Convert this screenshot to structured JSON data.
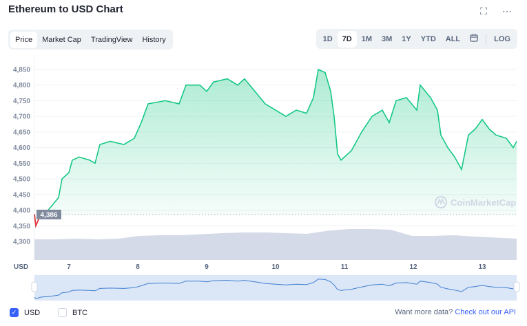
{
  "title": "Ethereum to USD Chart",
  "top_icons": [
    "fullscreen-icon",
    "more-icon"
  ],
  "tabs": [
    {
      "label": "Price",
      "active": true
    },
    {
      "label": "Market Cap"
    },
    {
      "label": "TradingView"
    },
    {
      "label": "History"
    }
  ],
  "ranges": [
    {
      "label": "1D"
    },
    {
      "label": "7D",
      "active": true
    },
    {
      "label": "1M"
    },
    {
      "label": "3M"
    },
    {
      "label": "1Y"
    },
    {
      "label": "YTD"
    },
    {
      "label": "ALL"
    }
  ],
  "calendar_icon": "calendar-icon",
  "log_label": "LOG",
  "watermark": "CoinMarketCap",
  "currency_label": "USD",
  "colors": {
    "up": "#16c784",
    "down": "#ea3943",
    "volume": "#cfd6e4",
    "navigator_line": "#3f7fd0",
    "link": "#3861fb"
  },
  "chart_data": {
    "type": "line",
    "ylim": [
      4250,
      4870
    ],
    "yticks": [
      "4,300",
      "4,350",
      "4,400",
      "4,450",
      "4,500",
      "4,550",
      "4,600",
      "4,650",
      "4,700",
      "4,750",
      "4,800",
      "4,850"
    ],
    "ytick_values": [
      4300,
      4350,
      4400,
      4450,
      4500,
      4550,
      4600,
      4650,
      4700,
      4750,
      4800,
      4850
    ],
    "xticks": [
      "7",
      "8",
      "9",
      "10",
      "11",
      "12",
      "13"
    ],
    "xtick_values": [
      7,
      8,
      9,
      10,
      11,
      12,
      13
    ],
    "xlim": [
      6.5,
      13.5
    ],
    "start_price_label": "4,386",
    "start_price": 4386,
    "x": [
      6.5,
      6.52,
      6.6,
      6.7,
      6.85,
      6.9,
      7.0,
      7.05,
      7.15,
      7.3,
      7.38,
      7.45,
      7.6,
      7.8,
      7.95,
      8.05,
      8.15,
      8.4,
      8.6,
      8.7,
      8.9,
      9.0,
      9.1,
      9.3,
      9.45,
      9.55,
      9.7,
      9.85,
      10.0,
      10.15,
      10.3,
      10.45,
      10.55,
      10.62,
      10.72,
      10.8,
      10.85,
      10.9,
      10.95,
      11.1,
      11.25,
      11.4,
      11.55,
      11.65,
      11.75,
      11.9,
      12.05,
      12.1,
      12.25,
      12.35,
      12.4,
      12.5,
      12.6,
      12.7,
      12.8,
      12.9,
      13.0,
      13.1,
      13.2,
      13.35,
      13.45,
      13.5
    ],
    "y": [
      4386,
      4350,
      4390,
      4400,
      4440,
      4500,
      4520,
      4560,
      4570,
      4560,
      4550,
      4610,
      4620,
      4610,
      4630,
      4680,
      4740,
      4750,
      4740,
      4800,
      4800,
      4780,
      4810,
      4820,
      4800,
      4820,
      4780,
      4740,
      4720,
      4700,
      4720,
      4710,
      4760,
      4850,
      4840,
      4780,
      4700,
      4580,
      4560,
      4590,
      4650,
      4700,
      4720,
      4680,
      4750,
      4760,
      4720,
      4800,
      4760,
      4720,
      4640,
      4600,
      4570,
      4530,
      4640,
      4660,
      4690,
      4660,
      4640,
      4630,
      4600,
      4620
    ],
    "volume_relative": [
      0.6,
      0.6,
      0.62,
      0.6,
      0.62,
      0.7,
      0.72,
      0.72,
      0.75,
      0.78,
      0.8,
      0.8,
      0.78,
      0.76,
      0.85,
      0.9,
      0.9,
      0.88,
      0.7,
      0.7,
      0.72,
      0.68,
      0.65,
      0.62
    ]
  },
  "footer": {
    "usd_label": "USD",
    "usd_checked": true,
    "btc_label": "BTC",
    "btc_checked": false,
    "api_text": "Want more data?",
    "api_link": "Check out our API"
  }
}
